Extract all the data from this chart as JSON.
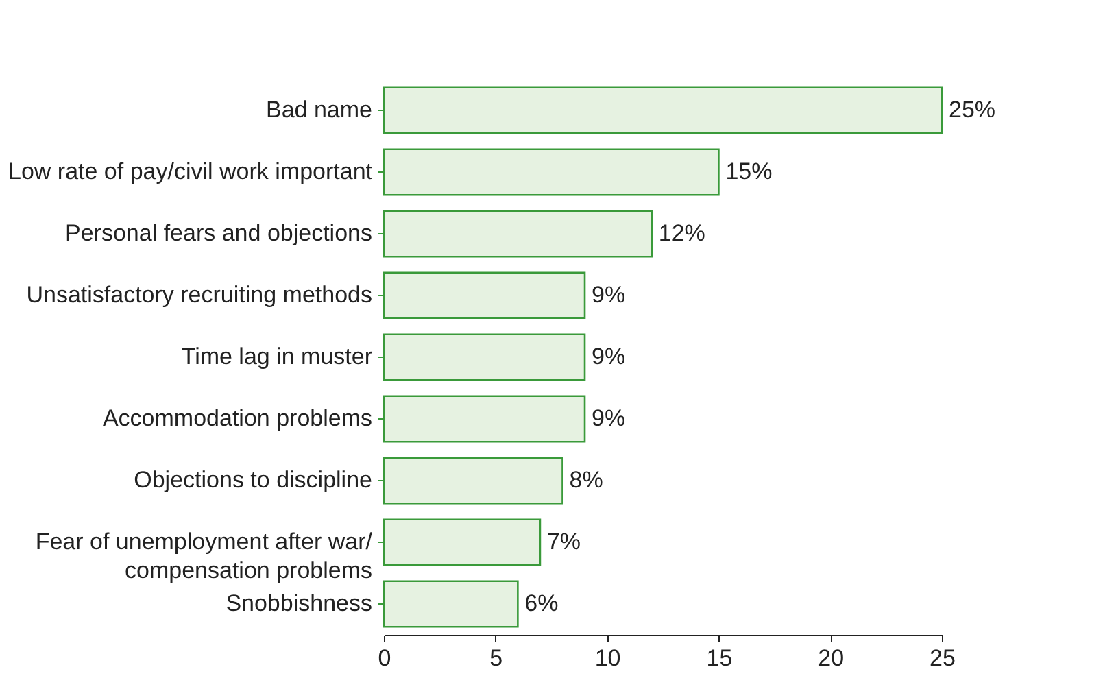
{
  "chart_data": {
    "type": "bar",
    "orientation": "horizontal",
    "categories": [
      "Bad name",
      "Low rate of pay/civil work important",
      "Personal fears and objections",
      "Unsatisfactory recruiting methods",
      "Time lag in muster",
      "Accommodation problems",
      "Objections to discipline",
      "Fear of unemployment after war/\ncompensation problems",
      "Snobbishness"
    ],
    "values": [
      25,
      15,
      12,
      9,
      9,
      9,
      8,
      7,
      6
    ],
    "value_labels": [
      "25%",
      "15%",
      "12%",
      "9%",
      "9%",
      "9%",
      "8%",
      "7%",
      "6%"
    ],
    "color": "#e6f2e1",
    "xlim": [
      0,
      25
    ],
    "xticks": [
      0,
      5,
      10,
      15,
      20,
      25
    ],
    "grid": false
  }
}
